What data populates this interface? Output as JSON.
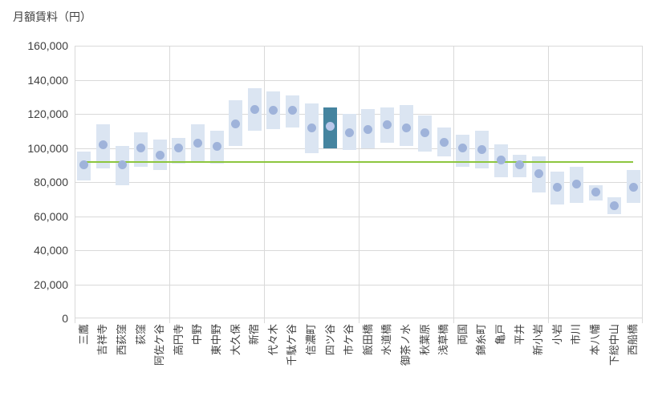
{
  "chart_data": {
    "type": "bar",
    "subtype": "floating-range-bars-with-median-dots",
    "title": "月額賃料（円）",
    "xlabel": "",
    "ylabel": "月額賃料（円）",
    "ylim": [
      0,
      160000
    ],
    "ytick_step": 20000,
    "y_ticks": [
      {
        "value": 160000,
        "label": "160,000"
      },
      {
        "value": 140000,
        "label": "140,000"
      },
      {
        "value": 120000,
        "label": "120,000"
      },
      {
        "value": 100000,
        "label": "100,000"
      },
      {
        "value": 80000,
        "label": "80,000"
      },
      {
        "value": 60000,
        "label": "60,000"
      },
      {
        "value": 40000,
        "label": "40,000"
      },
      {
        "value": 20000,
        "label": "20,000"
      },
      {
        "value": 0,
        "label": "0"
      }
    ],
    "categories": [
      "三鷹",
      "吉祥寺",
      "西荻窪",
      "荻窪",
      "阿佐ケ谷",
      "高円寺",
      "中野",
      "東中野",
      "大久保",
      "新宿",
      "代々木",
      "千駄ケ谷",
      "信濃町",
      "四ツ谷",
      "市ケ谷",
      "飯田橋",
      "水道橋",
      "御茶ノ水",
      "秋葉原",
      "浅草橋",
      "両国",
      "錦糸町",
      "亀戸",
      "平井",
      "新小岩",
      "小岩",
      "市川",
      "本八幡",
      "下総中山",
      "西船橋"
    ],
    "series": [
      {
        "name": "range_min",
        "values": [
          81000,
          88000,
          78000,
          89000,
          87000,
          91000,
          92000,
          91000,
          101000,
          110000,
          111000,
          112000,
          97000,
          100000,
          99000,
          100000,
          103000,
          101000,
          98000,
          95000,
          89000,
          88000,
          83000,
          83000,
          74000,
          67000,
          68000,
          69000,
          61000,
          68000
        ]
      },
      {
        "name": "range_max",
        "values": [
          98000,
          114000,
          101000,
          109000,
          105000,
          106000,
          114000,
          110000,
          128000,
          135000,
          133000,
          131000,
          126000,
          124000,
          120000,
          123000,
          124000,
          125000,
          119000,
          112000,
          108000,
          110000,
          102000,
          96000,
          95000,
          86000,
          89000,
          78000,
          71000,
          87000
        ]
      },
      {
        "name": "median",
        "values": [
          90000,
          102000,
          90000,
          100000,
          96000,
          100000,
          103000,
          101000,
          114000,
          122500,
          122000,
          122000,
          112000,
          112500,
          109000,
          111000,
          113500,
          112000,
          109000,
          103500,
          100000,
          99000,
          93000,
          90000,
          85000,
          77000,
          79000,
          74000,
          66000,
          77000
        ]
      }
    ],
    "highlighted_category": "四ツ谷",
    "reference_line_value": 92000,
    "grid": true,
    "legend_position": "none",
    "x_gridline_every": 5,
    "colors": {
      "bar": "#dbe5f2",
      "bar_highlight": "#45849f",
      "dot": "#9fb3da",
      "dot_highlight": "#b9c8ea",
      "reference_line": "#8dc63f",
      "gridline": "#d9d9d9",
      "text": "#3f3f3f"
    }
  }
}
